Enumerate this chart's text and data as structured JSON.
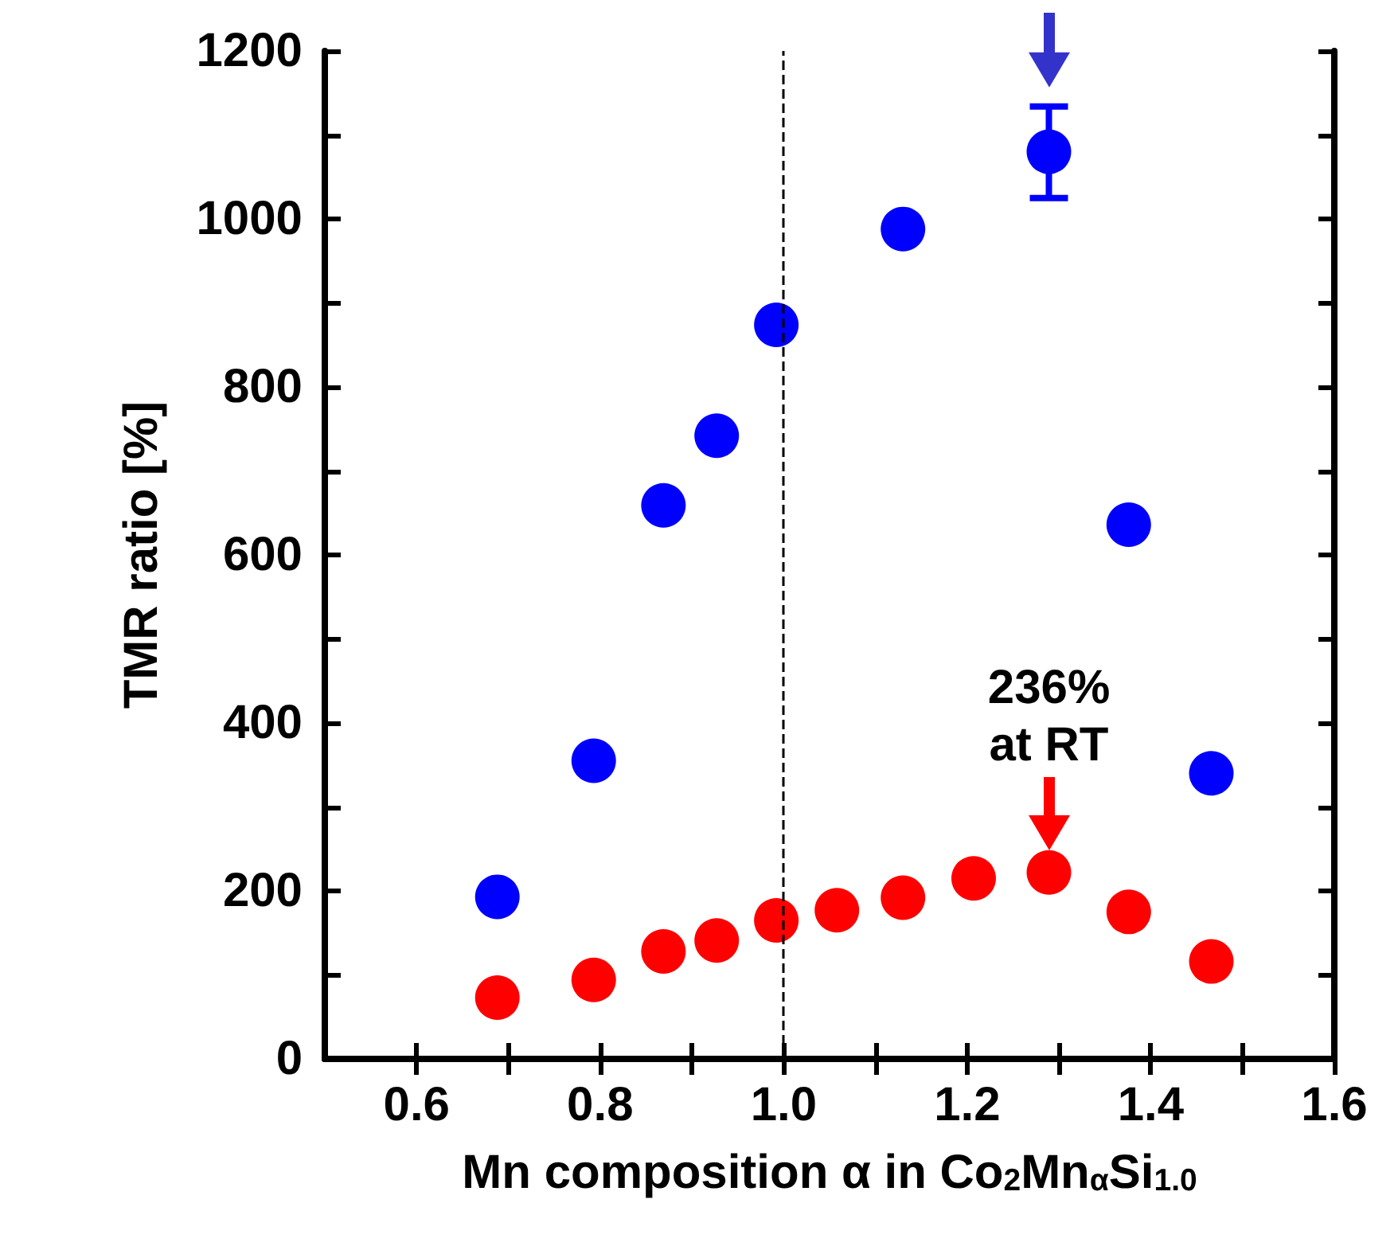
{
  "chart_data": {
    "type": "scatter",
    "xlabel": "Mn composition α in Co$_{2}$Mn$_{α}$Si$_{1.0}$",
    "ylabel": "TMR ratio [%]",
    "xlim": [
      0.5,
      1.6
    ],
    "xticks": [
      0.6,
      {
        "value": 0.7,
        "label": null
      },
      0.8,
      {
        "value": 0.9,
        "label": null
      },
      {
        "value": 1,
        "label": "1.0"
      },
      {
        "value": 1.1,
        "label": null
      },
      1.2,
      {
        "value": 1.3,
        "label": null
      },
      1.4,
      {
        "value": 1.5,
        "label": null
      },
      1.6
    ],
    "ylim": [
      0,
      1200
    ],
    "yticks": [
      0,
      {
        "value": 100,
        "label": null
      },
      200,
      {
        "value": 300,
        "label": null
      },
      400,
      {
        "value": 500,
        "label": null
      },
      600,
      {
        "value": 700,
        "label": null
      },
      800,
      {
        "value": 900,
        "label": null
      },
      1000,
      {
        "value": 1100,
        "label": null
      },
      1200
    ],
    "series": [
      {
        "color": "#0000ff",
        "x": [
          0.688,
          0.793,
          0.869,
          0.927,
          0.992,
          1.13,
          1.289,
          1.376,
          1.466
        ],
        "values": [
          193,
          355,
          659,
          742,
          874,
          988,
          1080,
          636,
          340
        ],
        "errors": [
          null,
          null,
          null,
          null,
          null,
          null,
          [
            1025,
            1134
          ],
          null,
          null
        ]
      },
      {
        "color": "#ff0000",
        "x": [
          0.688,
          0.793,
          0.869,
          0.927,
          0.992,
          1.058,
          1.13,
          1.207,
          1.289,
          1.376,
          1.466
        ],
        "values": [
          73,
          94,
          128,
          141,
          165,
          177,
          192,
          215,
          222,
          175,
          116
        ]
      }
    ],
    "ref_lines": [
      {
        "axis": "x",
        "value": 1.0,
        "color": "#000000",
        "line_style": "dashed"
      }
    ],
    "annotations": [
      {
        "text": "236%\nat RT",
        "x": 1.289,
        "y": 222
      }
    ],
    "marker": "circle"
  }
}
